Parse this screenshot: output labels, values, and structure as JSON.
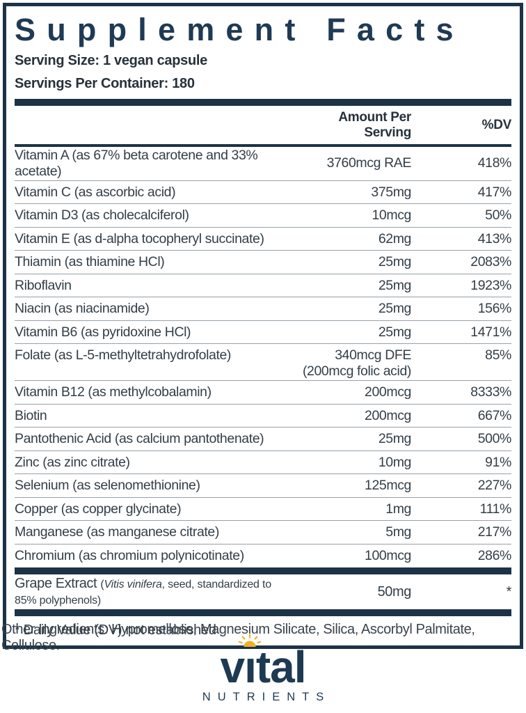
{
  "colors": {
    "navy": "#1c3247",
    "title_navy": "#1f3a54",
    "text": "#323e48",
    "separator": "#95a0a9",
    "gold": "#efb122"
  },
  "label": {
    "title": "Supplement Facts",
    "serving_size": "Serving Size: 1 vegan capsule",
    "servings_per_container": "Servings Per Container: 180",
    "columns": {
      "amount": "Amount Per Serving",
      "dv": "%DV"
    },
    "rows": [
      {
        "name": "Vitamin A (as 67% beta carotene and 33% acetate)",
        "amount": "3760mcg RAE",
        "dv": "418%"
      },
      {
        "name": "Vitamin C (as ascorbic acid)",
        "amount": "375mg",
        "dv": "417%"
      },
      {
        "name": "Vitamin D3 (as cholecalciferol)",
        "amount": "10mcg",
        "dv": "50%"
      },
      {
        "name": "Vitamin E (as d-alpha tocopheryl succinate)",
        "amount": "62mg",
        "dv": "413%"
      },
      {
        "name": "Thiamin (as thiamine HCl)",
        "amount": "25mg",
        "dv": "2083%"
      },
      {
        "name": "Riboflavin",
        "amount": "25mg",
        "dv": "1923%"
      },
      {
        "name": "Niacin (as niacinamide)",
        "amount": "25mg",
        "dv": "156%"
      },
      {
        "name": "Vitamin B6 (as pyridoxine HCl)",
        "amount": "25mg",
        "dv": "1471%"
      },
      {
        "name": "Folate (as L-5-methyltetrahydrofolate)",
        "amount": "340mcg DFE",
        "amount2": "(200mcg folic acid)",
        "dv": "85%"
      },
      {
        "name": "Vitamin B12 (as methylcobalamin)",
        "amount": "200mcg",
        "dv": "8333%"
      },
      {
        "name": "Biotin",
        "amount": "200mcg",
        "dv": "667%"
      },
      {
        "name": "Pantothenic Acid (as calcium pantothenate)",
        "amount": "25mg",
        "dv": "500%"
      },
      {
        "name": "Zinc (as zinc citrate)",
        "amount": "10mg",
        "dv": "91%"
      },
      {
        "name": "Selenium (as selenomethionine)",
        "amount": "125mcg",
        "dv": "227%"
      },
      {
        "name": "Copper (as copper glycinate)",
        "amount": "1mg",
        "dv": "111%"
      },
      {
        "name": "Manganese (as manganese citrate)",
        "amount": "5mg",
        "dv": "217%"
      },
      {
        "name": "Chromium (as chromium polynicotinate)",
        "amount": "100mcg",
        "dv": "286%"
      }
    ],
    "grape": {
      "name": "Grape Extract ",
      "note_pre": "(",
      "note_italic": "Vitis vinifera",
      "note_post": ", seed, standardized to 85% polyphenols)",
      "amount": "50mg",
      "dv": "*"
    },
    "footnote": "* Daily Value (DV) not established"
  },
  "other_ingredients": "Other Ingredients: Hypromellose, Magnesium Silicate, Silica, Ascorbyl Palmitate, Cellulose.",
  "logo": {
    "word_pre": "v",
    "word_i": "ı",
    "word_post": "tal",
    "subtext": "NUTRIENTS"
  }
}
